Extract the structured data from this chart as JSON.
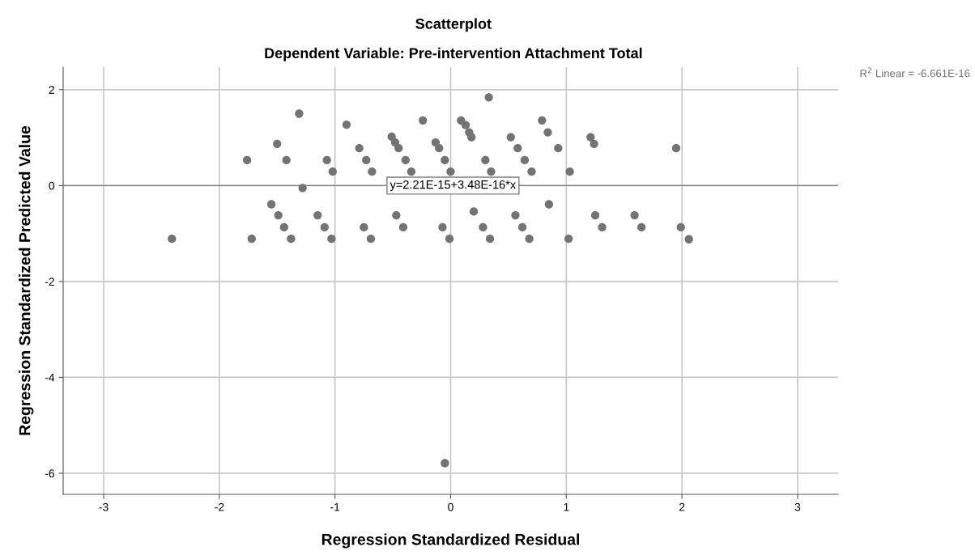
{
  "chart_data": {
    "type": "scatter",
    "title": "Scatterplot",
    "subtitle": "Dependent Variable: Pre-intervention Attachment Total",
    "xlabel": "Regression Standardized Residual",
    "ylabel": "Regression Standardized Predicted Value",
    "xlim": [
      -3.35,
      3.35
    ],
    "ylim": [
      -6.44,
      2.47
    ],
    "xticks": [
      -3,
      -2,
      -1,
      0,
      1,
      2,
      3
    ],
    "yticks": [
      -6,
      -4,
      -2,
      0,
      2
    ],
    "grid": true,
    "series": [
      {
        "color": "#737373",
        "marker": "circle",
        "x": [
          -2.41,
          -1.76,
          -1.72,
          -1.55,
          -1.5,
          -1.49,
          -1.44,
          -1.42,
          -1.38,
          -1.31,
          -1.28,
          -1.15,
          -1.09,
          -1.07,
          -1.03,
          -1.02,
          -0.9,
          -0.79,
          -0.75,
          -0.73,
          -0.69,
          -0.68,
          -0.51,
          -0.48,
          -0.47,
          -0.45,
          -0.41,
          -0.39,
          -0.34,
          -0.24,
          -0.13,
          -0.1,
          -0.07,
          -0.05,
          -0.05,
          -0.01,
          0.0,
          0.09,
          0.13,
          0.16,
          0.18,
          0.2,
          0.28,
          0.3,
          0.33,
          0.34,
          0.35,
          0.52,
          0.56,
          0.58,
          0.62,
          0.64,
          0.68,
          0.7,
          0.79,
          0.84,
          0.85,
          0.93,
          1.02,
          1.03,
          1.21,
          1.24,
          1.25,
          1.31,
          1.59,
          1.65,
          1.95,
          1.99,
          2.06
        ],
        "values": [
          -1.11,
          0.53,
          -1.11,
          -0.39,
          0.87,
          -0.62,
          -0.87,
          0.53,
          -1.11,
          1.5,
          -0.05,
          -0.62,
          -0.87,
          0.53,
          -1.11,
          0.29,
          1.27,
          0.78,
          -0.87,
          0.53,
          -1.11,
          0.29,
          1.02,
          0.9,
          -0.62,
          0.78,
          -0.87,
          0.53,
          0.29,
          1.36,
          0.9,
          0.78,
          -0.87,
          0.53,
          -5.79,
          -1.11,
          0.29,
          1.36,
          1.26,
          1.11,
          1.01,
          -0.54,
          -0.87,
          0.53,
          1.84,
          -1.11,
          0.29,
          1.01,
          -0.62,
          0.78,
          -0.87,
          0.53,
          -1.11,
          0.29,
          1.36,
          1.11,
          -0.39,
          0.78,
          -1.11,
          0.29,
          1.01,
          0.87,
          -0.62,
          -0.87,
          -0.62,
          -0.87,
          0.78,
          -0.87,
          -1.12
        ]
      },
      {
        "type": "line",
        "marker": "none",
        "color": "#808080",
        "x": [
          -3.35,
          3.35
        ],
        "values": [
          0,
          0
        ]
      }
    ],
    "annotations": [
      {
        "text": "y=2.21E-15+3.48E-16*x",
        "x": 0.02,
        "y": 0
      },
      "R$^{2}$ Linear = -6.661E-16"
    ]
  }
}
